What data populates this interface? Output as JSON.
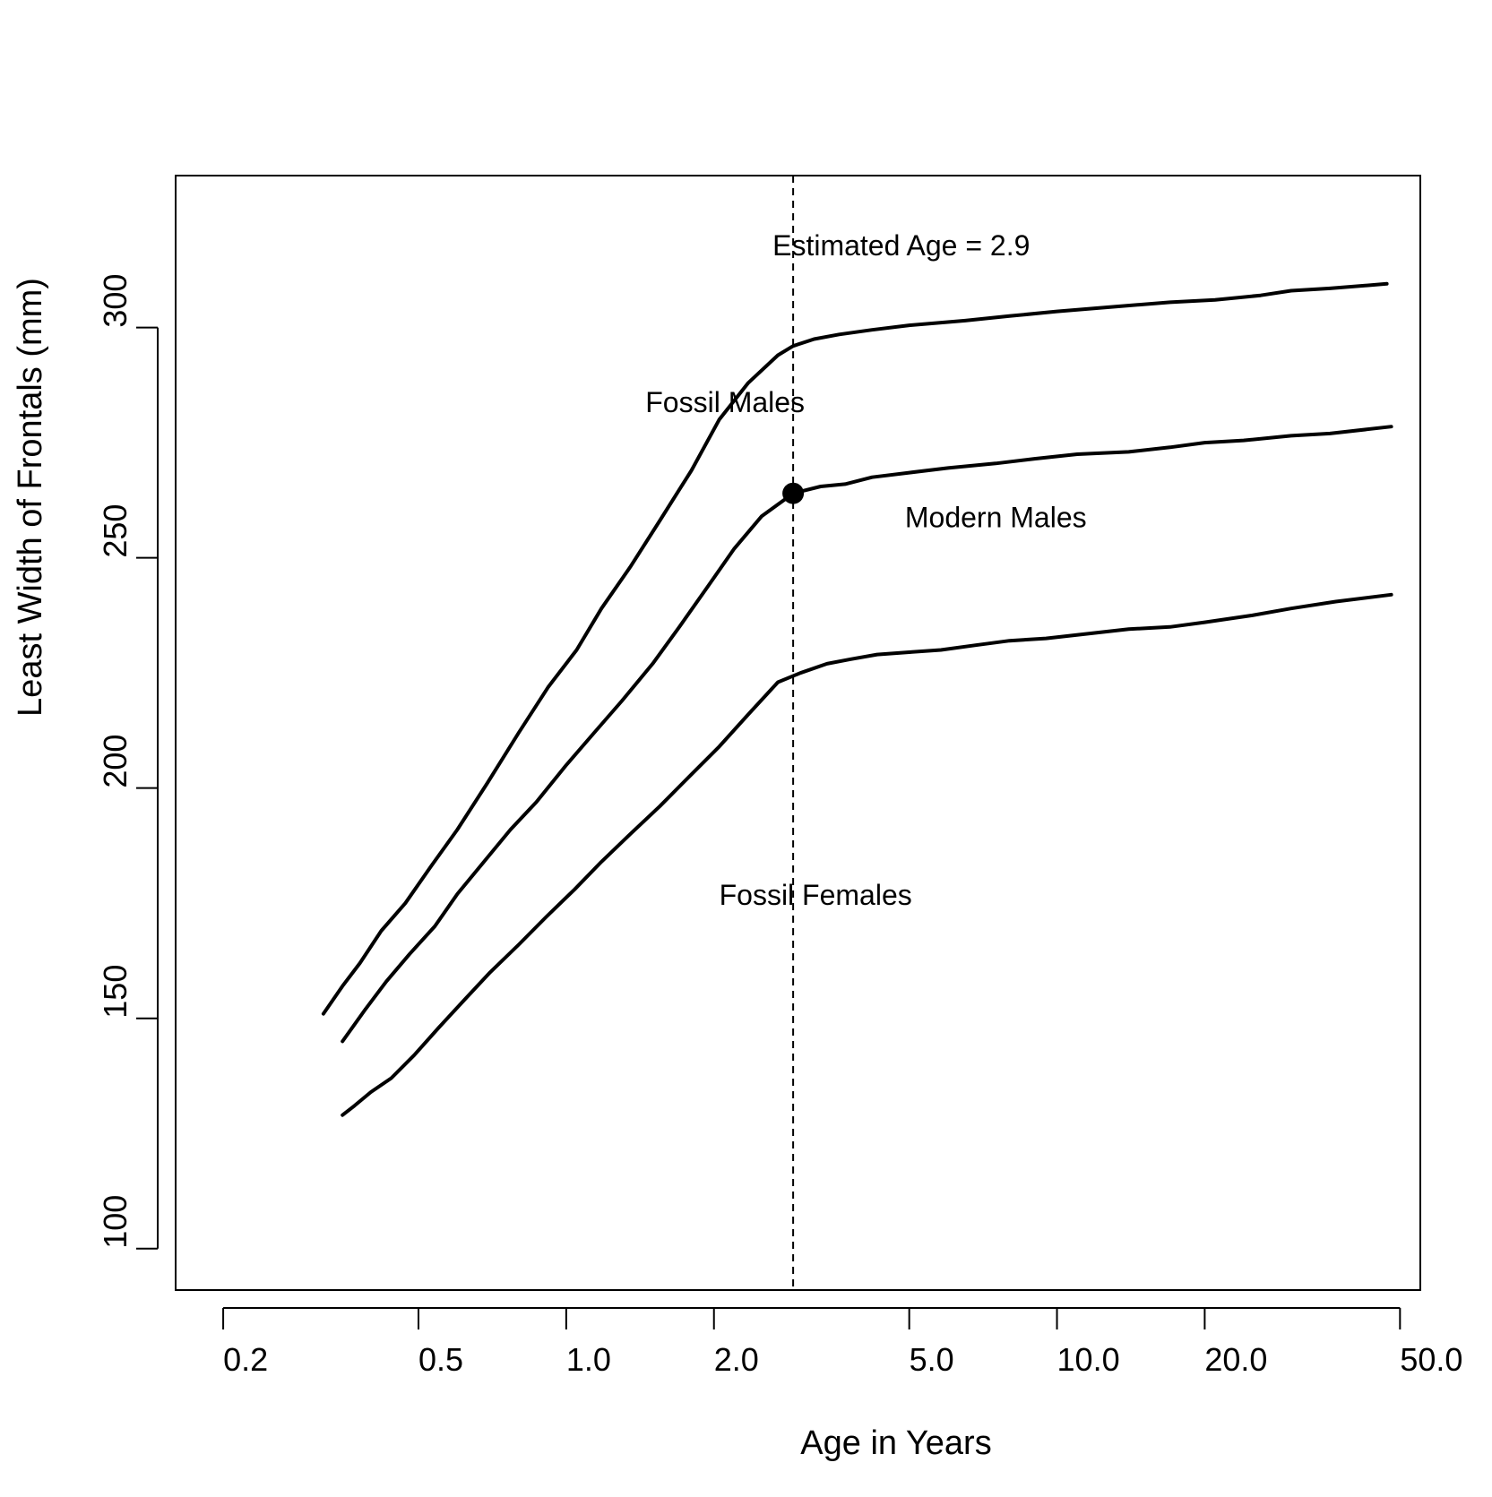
{
  "chart_data": {
    "type": "line",
    "title": "",
    "xlabel": "Age in Years",
    "ylabel": "Least Width of Frontals (mm)",
    "xscale": "log",
    "xlim": [
      0.16,
      55
    ],
    "ylim": [
      91,
      333
    ],
    "xticks": [
      0.2,
      0.5,
      1.0,
      2.0,
      5.0,
      10.0,
      20.0,
      50.0
    ],
    "xtick_labels": [
      "0.2",
      "0.5",
      "1.0",
      "2.0",
      "5.0",
      "10.0",
      "20.0",
      "50.0"
    ],
    "yticks": [
      100,
      150,
      200,
      250,
      300
    ],
    "ytick_labels": [
      "100",
      "150",
      "200",
      "250",
      "300"
    ],
    "grid": false,
    "line_color": "#000000",
    "series": [
      {
        "name": "Fossil Males",
        "x": [
          0.32,
          0.35,
          0.38,
          0.42,
          0.47,
          0.53,
          0.6,
          0.69,
          0.8,
          0.92,
          1.05,
          1.18,
          1.35,
          1.55,
          1.8,
          2.05,
          2.35,
          2.7,
          2.9,
          3.2,
          3.6,
          4.2,
          5.0,
          6.5,
          8.0,
          10.0,
          13.0,
          17.0,
          21.0,
          26.0,
          30.0,
          36.0,
          47.0
        ],
        "y": [
          151,
          157,
          162,
          169,
          175,
          183,
          191,
          201,
          212,
          222,
          230,
          239,
          248,
          258,
          269,
          280,
          288,
          294,
          296,
          297.5,
          298.5,
          299.5,
          300.5,
          301.5,
          302.5,
          303.5,
          304.5,
          305.5,
          306,
          307,
          308,
          308.5,
          309.5
        ],
        "label": "Fossil Males"
      },
      {
        "name": "Modern Males",
        "x": [
          0.35,
          0.39,
          0.43,
          0.48,
          0.54,
          0.6,
          0.68,
          0.77,
          0.87,
          1.0,
          1.14,
          1.3,
          1.5,
          1.7,
          1.95,
          2.2,
          2.5,
          2.9,
          3.3,
          3.7,
          4.2,
          5.0,
          6.0,
          7.5,
          9.0,
          11.0,
          14.0,
          17.0,
          20.0,
          24.0,
          30.0,
          36.0,
          48.0
        ],
        "y": [
          145,
          152,
          158,
          164,
          170,
          177,
          184,
          191,
          197,
          205,
          212,
          219,
          227,
          235,
          244,
          252,
          259,
          264,
          265.5,
          266,
          267.5,
          268.5,
          269.5,
          270.5,
          271.5,
          272.5,
          273,
          274,
          275,
          275.5,
          276.5,
          277,
          278.5
        ],
        "label": "Modern Males"
      },
      {
        "name": "Fossil Females",
        "x": [
          0.35,
          0.37,
          0.4,
          0.44,
          0.49,
          0.55,
          0.62,
          0.7,
          0.8,
          0.91,
          1.04,
          1.18,
          1.35,
          1.55,
          1.8,
          2.05,
          2.35,
          2.7,
          3.0,
          3.4,
          3.8,
          4.3,
          5.0,
          5.8,
          6.8,
          8.0,
          9.5,
          11.5,
          14.0,
          17.0,
          20.0,
          25.0,
          30.0,
          37.0,
          48.0
        ],
        "y": [
          129,
          131,
          134,
          137,
          142,
          148,
          154,
          160,
          166,
          172,
          178,
          184,
          190,
          196,
          203,
          209,
          216,
          223,
          225,
          227,
          228,
          229,
          229.5,
          230,
          231,
          232,
          232.5,
          233.5,
          234.5,
          235,
          236,
          237.5,
          239,
          240.5,
          242
        ],
        "label": "Fossil Females"
      }
    ],
    "marker": {
      "x": 2.9,
      "y": 264,
      "label": ""
    },
    "vline": {
      "x": 2.9,
      "style": "dashed"
    },
    "annotations": [
      {
        "text": "Estimated Age = 2.9",
        "x": 2.9,
        "y": 318,
        "anchor": "start"
      },
      {
        "text": "Fossil Males",
        "x": 1.45,
        "y": 284,
        "anchor": "start"
      },
      {
        "text": "Modern Males",
        "x": 4.9,
        "y": 259,
        "anchor": "start"
      },
      {
        "text": "Fossil Females",
        "x": 2.05,
        "y": 177,
        "anchor": "start"
      }
    ]
  }
}
